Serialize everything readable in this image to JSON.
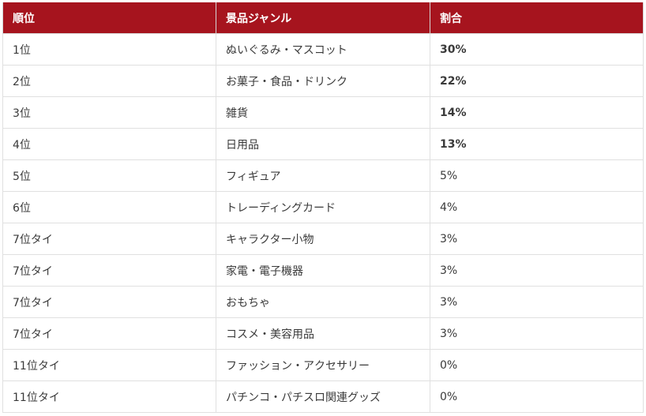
{
  "table": {
    "headers": [
      "順位",
      "景品ジャンル",
      "割合"
    ],
    "rows": [
      {
        "rank": "1位",
        "genre": "ぬいぐるみ・マスコット",
        "share": "30%",
        "emphasis": true
      },
      {
        "rank": "2位",
        "genre": "お菓子・食品・ドリンク",
        "share": "22%",
        "emphasis": true
      },
      {
        "rank": "3位",
        "genre": "雑貨",
        "share": "14%",
        "emphasis": true
      },
      {
        "rank": "4位",
        "genre": "日用品",
        "share": "13%",
        "emphasis": true
      },
      {
        "rank": "5位",
        "genre": "フィギュア",
        "share": "5%",
        "emphasis": false
      },
      {
        "rank": "6位",
        "genre": "トレーディングカード",
        "share": "4%",
        "emphasis": false
      },
      {
        "rank": "7位タイ",
        "genre": "キャラクター小物",
        "share": "3%",
        "emphasis": false
      },
      {
        "rank": "7位タイ",
        "genre": "家電・電子機器",
        "share": "3%",
        "emphasis": false
      },
      {
        "rank": "7位タイ",
        "genre": "おもちゃ",
        "share": "3%",
        "emphasis": false
      },
      {
        "rank": "7位タイ",
        "genre": "コスメ・美容用品",
        "share": "3%",
        "emphasis": false
      },
      {
        "rank": "11位タイ",
        "genre": "ファッション・アクセサリー",
        "share": "0%",
        "emphasis": false
      },
      {
        "rank": "11位タイ",
        "genre": "パチンコ・パチスロ関連グッズ",
        "share": "0%",
        "emphasis": false
      }
    ]
  },
  "colors": {
    "header_background": "#a6141e",
    "header_text": "#ffffff",
    "border": "#e0e0e0",
    "body_text": "#3a3a3a"
  }
}
